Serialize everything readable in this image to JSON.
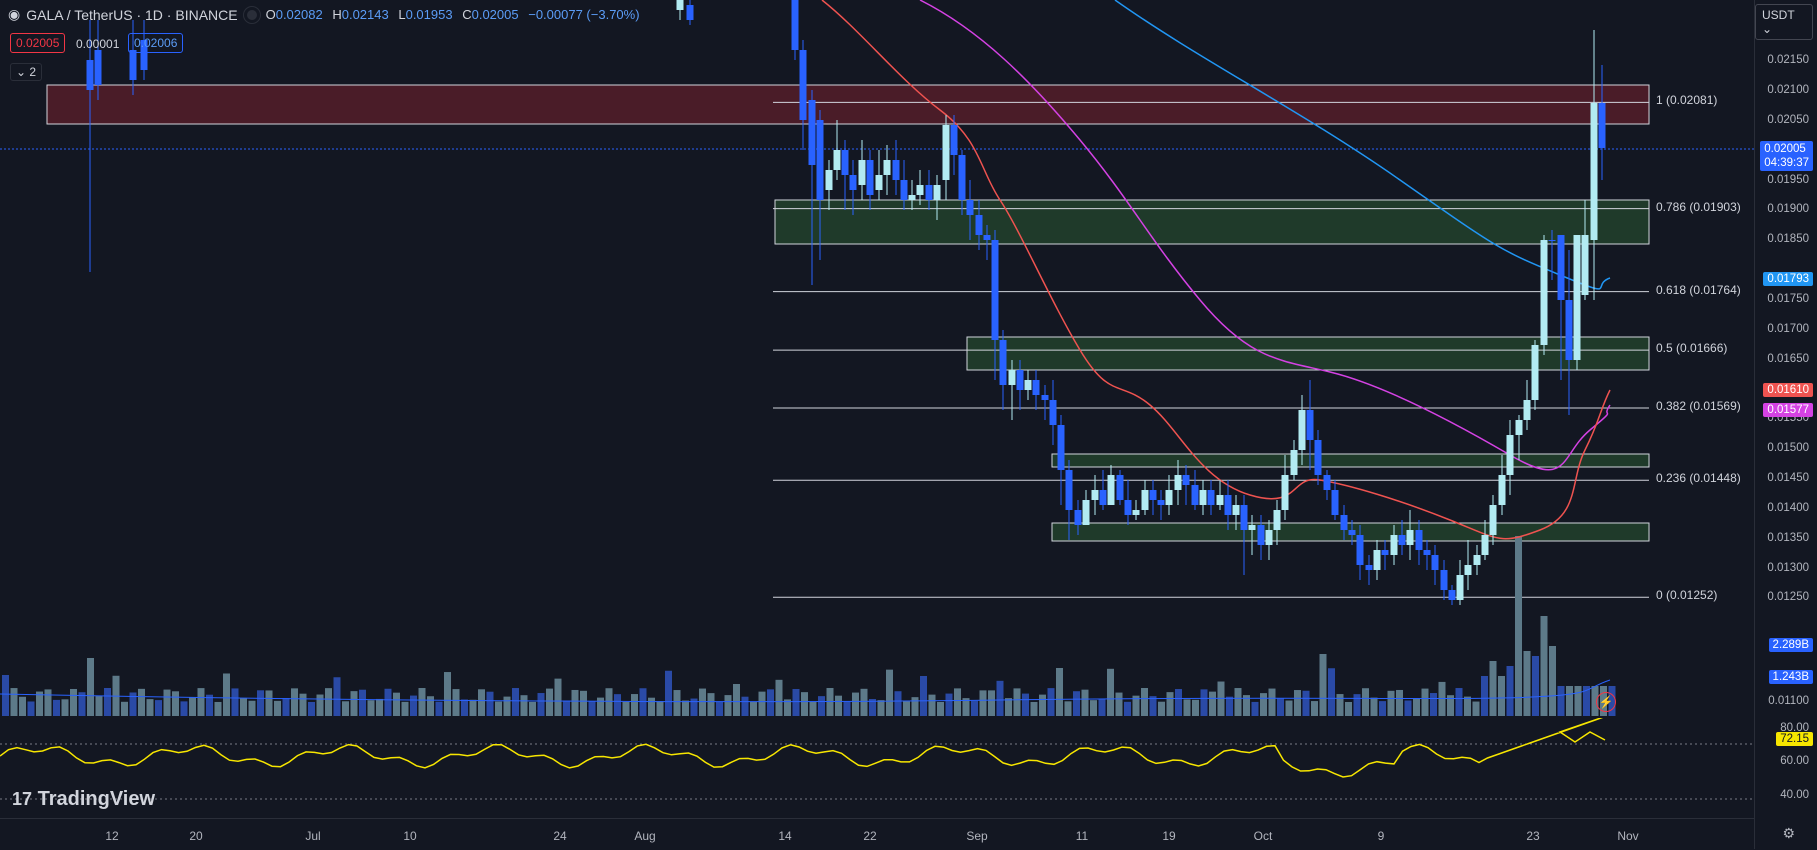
{
  "header": {
    "symbol": "GALA / TetherUS · 1D · BINANCE",
    "o_label": "O",
    "o": "0.02082",
    "h_label": "H",
    "h": "0.02143",
    "l_label": "L",
    "l": "0.01953",
    "c_label": "C",
    "c": "0.02005",
    "change": "−0.00077 (−3.70%)",
    "sell_price": "0.02005",
    "spread": "0.00001",
    "buy_price": "0.02006",
    "layers": "⌄ 2"
  },
  "currency": "USDT",
  "price_ticks": [
    "0.02150",
    "0.02100",
    "0.02050",
    "0.01950",
    "0.01900",
    "0.01850",
    "0.01750",
    "0.01700",
    "0.01650",
    "0.01550",
    "0.01500",
    "0.01450",
    "0.01400",
    "0.01350",
    "0.01300",
    "0.01250",
    "0.01100"
  ],
  "tags": {
    "last_price": "0.02005",
    "countdown": "04:39:37",
    "ma_blue": "0.01793",
    "ma_red": "0.01610",
    "ma_purple": "0.01577",
    "vol1": "2.289B",
    "vol2": "1.243B",
    "rsi": "72.15"
  },
  "rsi_ticks": [
    "80.00",
    "60.00",
    "40.00"
  ],
  "fib_levels": [
    {
      "label": "1 (0.02081)",
      "value": 0.02081
    },
    {
      "label": "0.786 (0.01903)",
      "value": 0.01903
    },
    {
      "label": "0.618 (0.01764)",
      "value": 0.01764
    },
    {
      "label": "0.5 (0.01666)",
      "value": 0.01666
    },
    {
      "label": "0.382 (0.01569)",
      "value": 0.01569
    },
    {
      "label": "0.236 (0.01448)",
      "value": 0.01448
    },
    {
      "label": "0 (0.01252)",
      "value": 0.01252
    }
  ],
  "time_labels": [
    "12",
    "20",
    "Jul",
    "10",
    "24",
    "Aug",
    "14",
    "22",
    "Sep",
    "11",
    "19",
    "Oct",
    "9",
    "23",
    "Nov"
  ],
  "logo": "TradingView",
  "colors": {
    "up": "#b2ebf2",
    "down": "#2962ff",
    "ma_red": "#ef5350",
    "ma_purple": "#d442e3",
    "ma_blue": "#2196f3",
    "rsi": "#f7e600",
    "zone_red": "#5b1f2e",
    "zone_green": "#1e3a2c"
  }
}
